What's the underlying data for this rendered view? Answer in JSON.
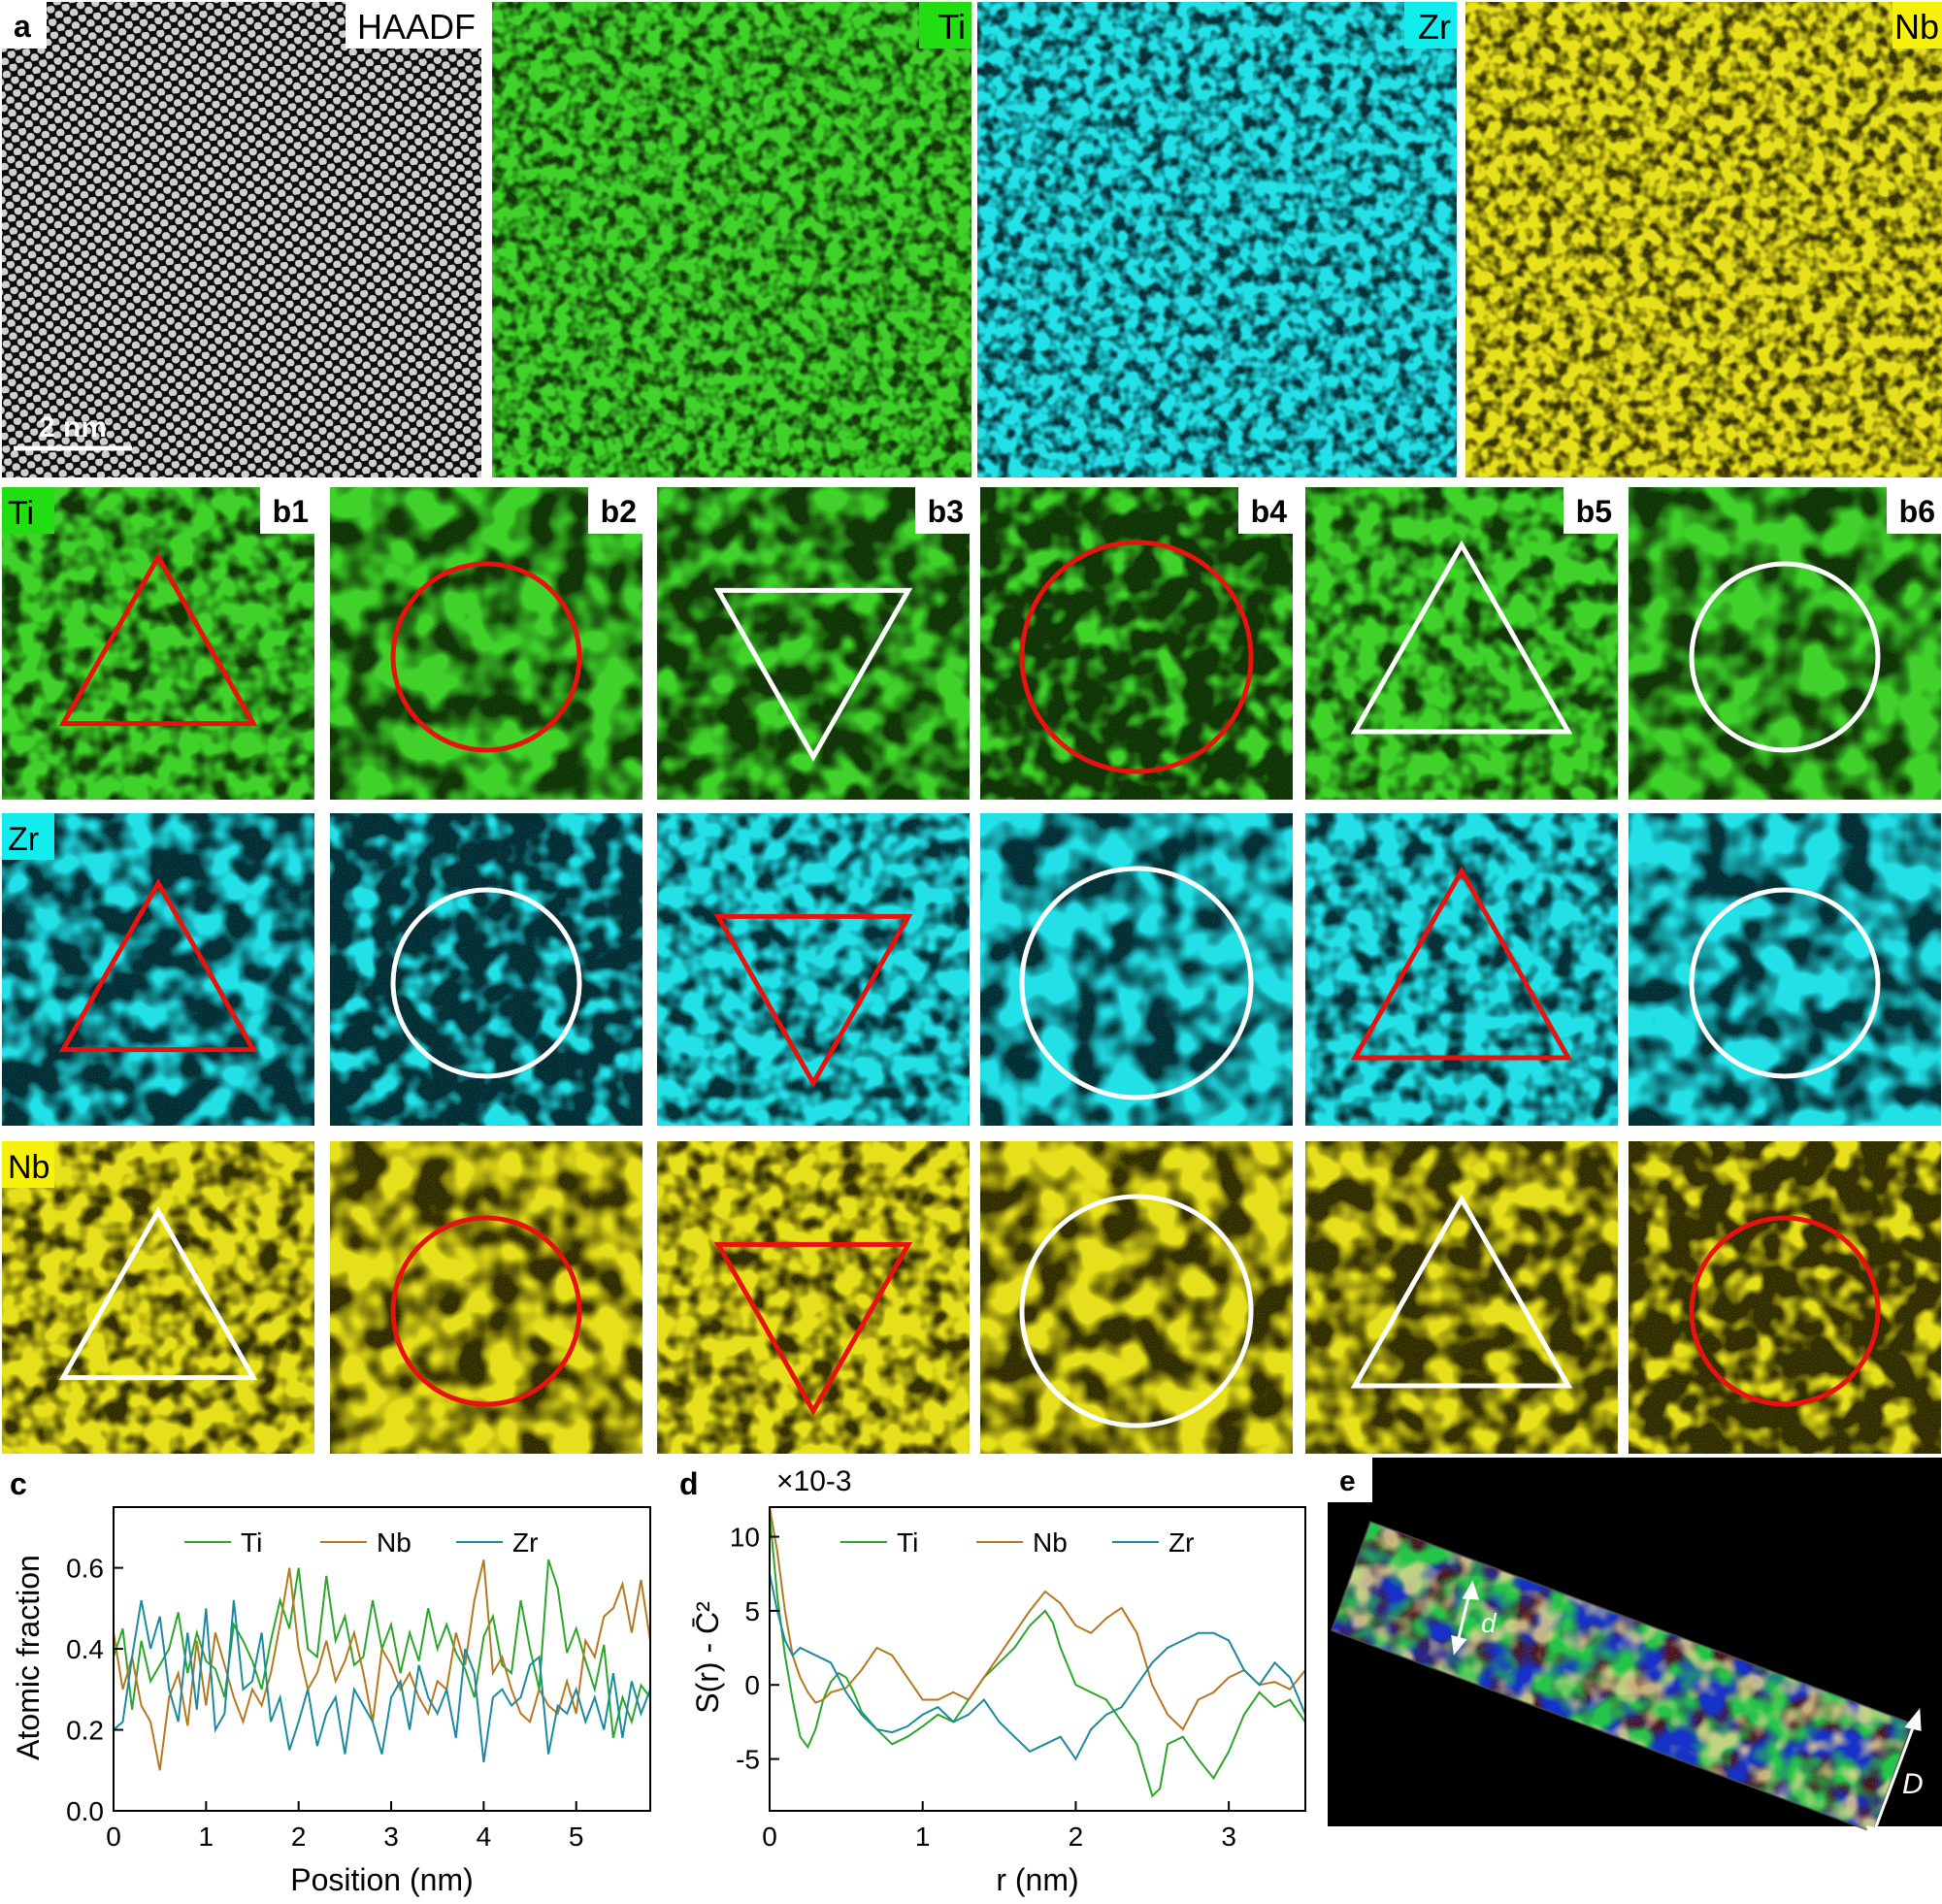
{
  "panel_a": {
    "letter": "a",
    "maps": [
      {
        "label": "HAADF",
        "tag_bg": "#ffffff",
        "tag_fg": "#000000",
        "base": "#000000",
        "color": "#d8d8d8"
      },
      {
        "label": "Ti",
        "tag_bg": "#22dd11",
        "tag_fg": "#000000",
        "base": "#0e2a05",
        "color": "#3fd22a"
      },
      {
        "label": "Zr",
        "tag_bg": "#11ecec",
        "tag_fg": "#000000",
        "base": "#03232a",
        "color": "#22e0e6"
      },
      {
        "label": "Nb",
        "tag_bg": "#f5f10b",
        "tag_fg": "#000000",
        "base": "#262200",
        "color": "#e6df1a"
      }
    ],
    "scale_bar": "2 nm"
  },
  "panel_b": {
    "columns": [
      "b1",
      "b2",
      "b3",
      "b4",
      "b5",
      "b6"
    ],
    "shapes": [
      "triangle-up",
      "circle",
      "triangle-down",
      "circle",
      "triangle-up",
      "circle"
    ],
    "rows": [
      {
        "element": "Ti",
        "tag_bg": "#22dd11",
        "base": "#0e2a05",
        "color": "#3fd22a",
        "outline_colors": [
          "#e8120f",
          "#e8120f",
          "#ffffff",
          "#e8120f",
          "#ffffff",
          "#ffffff"
        ]
      },
      {
        "element": "Zr",
        "tag_bg": "#11ecec",
        "base": "#03232a",
        "color": "#22e0e6",
        "outline_colors": [
          "#e8120f",
          "#ffffff",
          "#e8120f",
          "#ffffff",
          "#e8120f",
          "#ffffff"
        ]
      },
      {
        "element": "Nb",
        "tag_bg": "#f5f10b",
        "base": "#262200",
        "color": "#e6df1a",
        "outline_colors": [
          "#ffffff",
          "#e8120f",
          "#e8120f",
          "#ffffff",
          "#ffffff",
          "#e8120f"
        ]
      }
    ]
  },
  "chart_data": [
    {
      "panel": "c",
      "type": "line",
      "xlabel": "Position (nm)",
      "ylabel": "Atomic fraction",
      "xlim": [
        0,
        5.8
      ],
      "ylim": [
        0.0,
        0.75
      ],
      "xticks": [
        "0",
        "1",
        "2",
        "3",
        "4",
        "5"
      ],
      "yticks": [
        "0.0",
        "0.2",
        "0.4",
        "0.6"
      ],
      "legend_placement": "top",
      "series": [
        {
          "name": "Ti",
          "color": "#2aa62a",
          "x": [
            0,
            0.1,
            0.2,
            0.3,
            0.4,
            0.5,
            0.6,
            0.7,
            0.8,
            0.9,
            1.0,
            1.1,
            1.2,
            1.3,
            1.4,
            1.5,
            1.6,
            1.7,
            1.8,
            1.9,
            2.0,
            2.1,
            2.2,
            2.3,
            2.4,
            2.5,
            2.6,
            2.7,
            2.8,
            2.9,
            3.0,
            3.1,
            3.2,
            3.3,
            3.4,
            3.5,
            3.6,
            3.7,
            3.8,
            3.9,
            4.0,
            4.1,
            4.2,
            4.3,
            4.4,
            4.5,
            4.6,
            4.7,
            4.8,
            4.9,
            5.0,
            5.1,
            5.2,
            5.3,
            5.4,
            5.5,
            5.6,
            5.7,
            5.8
          ],
          "y": [
            0.38,
            0.45,
            0.25,
            0.42,
            0.32,
            0.36,
            0.4,
            0.49,
            0.34,
            0.44,
            0.37,
            0.35,
            0.28,
            0.46,
            0.42,
            0.37,
            0.3,
            0.42,
            0.52,
            0.45,
            0.6,
            0.4,
            0.38,
            0.58,
            0.42,
            0.48,
            0.36,
            0.38,
            0.52,
            0.4,
            0.46,
            0.34,
            0.44,
            0.37,
            0.5,
            0.4,
            0.46,
            0.39,
            0.35,
            0.28,
            0.43,
            0.48,
            0.36,
            0.34,
            0.52,
            0.4,
            0.3,
            0.62,
            0.55,
            0.39,
            0.45,
            0.37,
            0.3,
            0.41,
            0.18,
            0.28,
            0.22,
            0.31,
            0.28
          ]
        },
        {
          "name": "Nb",
          "color": "#b5781e",
          "x": [
            0,
            0.1,
            0.2,
            0.3,
            0.4,
            0.5,
            0.6,
            0.7,
            0.8,
            0.9,
            1.0,
            1.1,
            1.2,
            1.3,
            1.4,
            1.5,
            1.6,
            1.7,
            1.8,
            1.9,
            2.0,
            2.1,
            2.2,
            2.3,
            2.4,
            2.5,
            2.6,
            2.7,
            2.8,
            2.9,
            3.0,
            3.1,
            3.2,
            3.3,
            3.4,
            3.5,
            3.6,
            3.7,
            3.8,
            3.9,
            4.0,
            4.1,
            4.2,
            4.3,
            4.4,
            4.5,
            4.6,
            4.7,
            4.8,
            4.9,
            5.0,
            5.1,
            5.2,
            5.3,
            5.4,
            5.5,
            5.6,
            5.7,
            5.8
          ],
          "y": [
            0.44,
            0.3,
            0.38,
            0.26,
            0.22,
            0.1,
            0.28,
            0.34,
            0.21,
            0.42,
            0.26,
            0.44,
            0.36,
            0.28,
            0.22,
            0.3,
            0.26,
            0.34,
            0.46,
            0.6,
            0.4,
            0.3,
            0.34,
            0.42,
            0.32,
            0.37,
            0.44,
            0.34,
            0.22,
            0.4,
            0.36,
            0.3,
            0.34,
            0.28,
            0.24,
            0.32,
            0.3,
            0.44,
            0.36,
            0.52,
            0.62,
            0.34,
            0.38,
            0.3,
            0.24,
            0.22,
            0.3,
            0.26,
            0.24,
            0.32,
            0.24,
            0.42,
            0.38,
            0.48,
            0.5,
            0.56,
            0.44,
            0.57,
            0.42
          ]
        },
        {
          "name": "Zr",
          "color": "#1a8a9e",
          "x": [
            0,
            0.1,
            0.2,
            0.3,
            0.4,
            0.5,
            0.6,
            0.7,
            0.8,
            0.9,
            1.0,
            1.1,
            1.2,
            1.3,
            1.4,
            1.5,
            1.6,
            1.7,
            1.8,
            1.9,
            2.0,
            2.1,
            2.2,
            2.3,
            2.4,
            2.5,
            2.6,
            2.7,
            2.8,
            2.9,
            3.0,
            3.1,
            3.2,
            3.3,
            3.4,
            3.5,
            3.6,
            3.7,
            3.8,
            3.9,
            4.0,
            4.1,
            4.2,
            4.3,
            4.4,
            4.5,
            4.6,
            4.7,
            4.8,
            4.9,
            5.0,
            5.1,
            5.2,
            5.3,
            5.4,
            5.5,
            5.6,
            5.7,
            5.8
          ],
          "y": [
            0.2,
            0.22,
            0.38,
            0.52,
            0.4,
            0.48,
            0.3,
            0.22,
            0.44,
            0.25,
            0.5,
            0.2,
            0.24,
            0.52,
            0.3,
            0.32,
            0.44,
            0.22,
            0.28,
            0.15,
            0.22,
            0.3,
            0.16,
            0.24,
            0.28,
            0.14,
            0.3,
            0.26,
            0.22,
            0.14,
            0.28,
            0.32,
            0.2,
            0.36,
            0.28,
            0.24,
            0.3,
            0.18,
            0.4,
            0.34,
            0.12,
            0.28,
            0.3,
            0.26,
            0.28,
            0.36,
            0.38,
            0.14,
            0.26,
            0.24,
            0.3,
            0.22,
            0.28,
            0.2,
            0.34,
            0.18,
            0.32,
            0.24,
            0.3
          ]
        }
      ]
    },
    {
      "panel": "d",
      "type": "line",
      "xlabel": "r (nm)",
      "ylabel": "S(r) - C̄²",
      "multiplier": "×10-3",
      "xlim": [
        0,
        3.5
      ],
      "ylim": [
        -8.5,
        12
      ],
      "xticks": [
        "0",
        "1",
        "2",
        "3"
      ],
      "yticks": [
        "10",
        "5",
        "0",
        "-5"
      ],
      "legend_placement": "top",
      "series": [
        {
          "name": "Ti",
          "color": "#2aa62a",
          "x": [
            0,
            0.05,
            0.1,
            0.15,
            0.2,
            0.25,
            0.3,
            0.35,
            0.4,
            0.45,
            0.5,
            0.55,
            0.6,
            0.7,
            0.8,
            0.9,
            1.0,
            1.1,
            1.2,
            1.3,
            1.4,
            1.5,
            1.6,
            1.7,
            1.8,
            1.85,
            1.9,
            2.0,
            2.1,
            2.2,
            2.3,
            2.4,
            2.5,
            2.55,
            2.6,
            2.7,
            2.8,
            2.9,
            3.0,
            3.1,
            3.2,
            3.3,
            3.4,
            3.5
          ],
          "y": [
            11.5,
            6.0,
            2.0,
            -1.0,
            -3.5,
            -4.2,
            -3.0,
            -1.0,
            0.2,
            0.8,
            0.5,
            -0.5,
            -1.8,
            -3.0,
            -4.0,
            -3.5,
            -2.8,
            -2.0,
            -2.5,
            -1.0,
            0.5,
            1.5,
            2.5,
            4.0,
            5.0,
            4.2,
            2.5,
            0.0,
            -0.5,
            -1.0,
            -2.5,
            -4.0,
            -7.5,
            -7.0,
            -4.0,
            -3.5,
            -5.0,
            -6.3,
            -4.5,
            -2.0,
            -0.5,
            -1.5,
            -1.0,
            -2.5
          ]
        },
        {
          "name": "Nb",
          "color": "#b5781e",
          "x": [
            0,
            0.05,
            0.1,
            0.15,
            0.2,
            0.25,
            0.3,
            0.35,
            0.4,
            0.5,
            0.6,
            0.7,
            0.8,
            0.9,
            1.0,
            1.1,
            1.2,
            1.3,
            1.4,
            1.5,
            1.6,
            1.7,
            1.8,
            1.9,
            2.0,
            2.1,
            2.2,
            2.3,
            2.4,
            2.5,
            2.6,
            2.7,
            2.8,
            2.9,
            3.0,
            3.1,
            3.2,
            3.3,
            3.4,
            3.5
          ],
          "y": [
            12.0,
            9.0,
            5.0,
            2.0,
            0.5,
            -0.5,
            -1.2,
            -1.0,
            -0.5,
            -0.2,
            1.0,
            2.5,
            2.0,
            0.5,
            -1.0,
            -1.0,
            -0.5,
            -1.0,
            0.5,
            2.0,
            3.5,
            5.0,
            6.3,
            5.5,
            4.0,
            3.5,
            4.5,
            5.2,
            3.5,
            0.0,
            -2.0,
            -3.0,
            -1.0,
            -0.5,
            0.5,
            1.0,
            0.0,
            0.2,
            -0.3,
            1.0
          ]
        },
        {
          "name": "Zr",
          "color": "#1a8a9e",
          "x": [
            0,
            0.05,
            0.1,
            0.15,
            0.2,
            0.3,
            0.4,
            0.5,
            0.6,
            0.7,
            0.8,
            0.9,
            1.0,
            1.1,
            1.2,
            1.3,
            1.4,
            1.5,
            1.6,
            1.7,
            1.8,
            1.9,
            2.0,
            2.1,
            2.2,
            2.3,
            2.4,
            2.5,
            2.6,
            2.7,
            2.8,
            2.9,
            3.0,
            3.1,
            3.2,
            3.3,
            3.4,
            3.5
          ],
          "y": [
            7.5,
            5.0,
            3.0,
            2.0,
            2.5,
            2.0,
            1.5,
            -0.5,
            -2.0,
            -3.0,
            -3.2,
            -2.8,
            -2.0,
            -1.5,
            -2.5,
            -2.0,
            -1.0,
            -2.5,
            -3.5,
            -4.5,
            -4.0,
            -3.5,
            -5.0,
            -3.0,
            -2.0,
            -1.5,
            0.0,
            1.5,
            2.5,
            3.0,
            3.5,
            3.5,
            3.0,
            1.0,
            0.0,
            1.5,
            0.5,
            -2.0
          ]
        }
      ]
    }
  ],
  "panel_e": {
    "letter": "e",
    "label_d": "d",
    "label_D": "D"
  }
}
